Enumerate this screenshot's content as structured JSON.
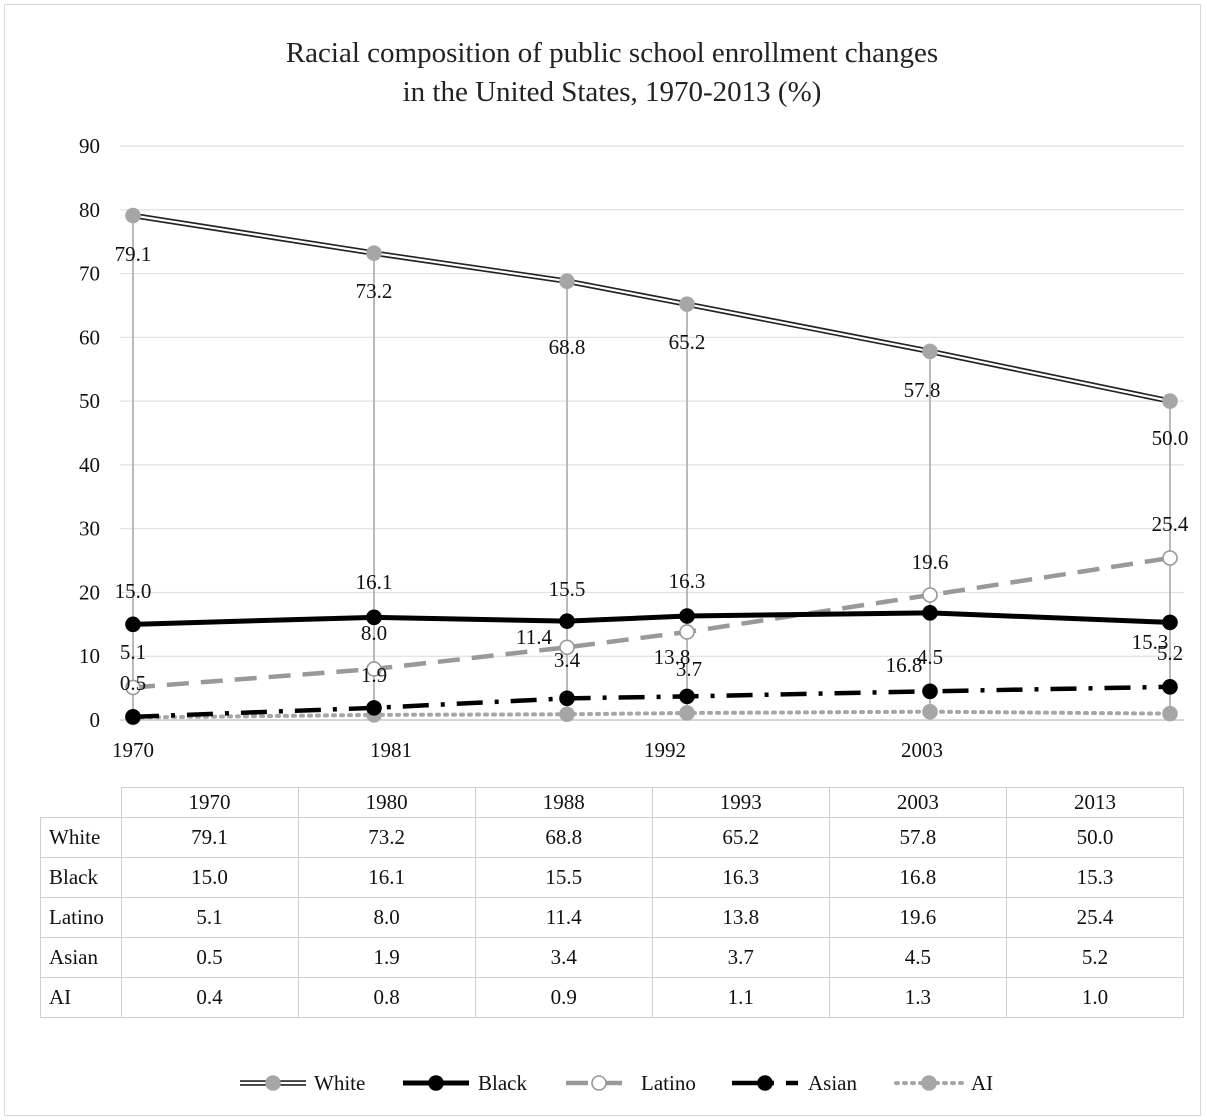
{
  "chart_data": {
    "type": "line",
    "title": [
      "Racial composition of public school enrollment changes",
      "in the United States, 1970-2013 (%)"
    ],
    "x_categories": [
      "1970",
      "1980",
      "1988",
      "1993",
      "2003",
      "2013"
    ],
    "x_tick_labels": [
      "1970",
      "1981",
      "1992",
      "2003"
    ],
    "ylim": [
      0,
      90
    ],
    "y_ticks": [
      "0",
      "10",
      "20",
      "30",
      "40",
      "50",
      "60",
      "70",
      "80",
      "90"
    ],
    "grid": true,
    "legend_position": "bottom",
    "series": [
      {
        "name": "White",
        "values": [
          79.1,
          73.2,
          68.8,
          65.2,
          57.8,
          50.0
        ],
        "labels": [
          "79.1",
          "73.2",
          "68.8",
          "65.2",
          "57.8",
          "50.0"
        ],
        "style": "double",
        "color": "#a6a6a6"
      },
      {
        "name": "Black",
        "values": [
          15.0,
          16.1,
          15.5,
          16.3,
          16.8,
          15.3
        ],
        "labels": [
          "15.0",
          "16.1",
          "15.5",
          "16.3",
          "16.8",
          "15.3"
        ],
        "style": "solid",
        "color": "#000000"
      },
      {
        "name": "Latino",
        "values": [
          5.1,
          8.0,
          11.4,
          13.8,
          19.6,
          25.4
        ],
        "labels": [
          "5.1",
          "8.0",
          "11.4",
          "13.8",
          "19.6",
          "25.4"
        ],
        "style": "dash",
        "color": "#999999"
      },
      {
        "name": "Asian",
        "values": [
          0.5,
          1.9,
          3.4,
          3.7,
          4.5,
          5.2
        ],
        "labels": [
          "0.5",
          "1.9",
          "3.4",
          "3.7",
          "4.5",
          "5.2"
        ],
        "style": "dashdot",
        "color": "#000000"
      },
      {
        "name": "AI",
        "values": [
          0.4,
          0.8,
          0.9,
          1.1,
          1.3,
          1.0
        ],
        "labels": [
          "0.4",
          "0.8",
          "0.9",
          "1.1",
          "1.3",
          "1.0"
        ],
        "style": "dot",
        "color": "#a6a6a6"
      }
    ],
    "table": {
      "header": [
        "1970",
        "1980",
        "1988",
        "1993",
        "2003",
        "2013"
      ],
      "rows": [
        {
          "label": "White",
          "cells": [
            "79.1",
            "73.2",
            "68.8",
            "65.2",
            "57.8",
            "50.0"
          ]
        },
        {
          "label": "Black",
          "cells": [
            "15.0",
            "16.1",
            "15.5",
            "16.3",
            "16.8",
            "15.3"
          ]
        },
        {
          "label": "Latino",
          "cells": [
            "5.1",
            "8.0",
            "11.4",
            "13.8",
            "19.6",
            "25.4"
          ]
        },
        {
          "label": "Asian",
          "cells": [
            "0.5",
            "1.9",
            "3.4",
            "3.7",
            "4.5",
            "5.2"
          ]
        },
        {
          "label": "AI",
          "cells": [
            "0.4",
            "0.8",
            "0.9",
            "1.1",
            "1.3",
            "1.0"
          ]
        }
      ]
    }
  }
}
